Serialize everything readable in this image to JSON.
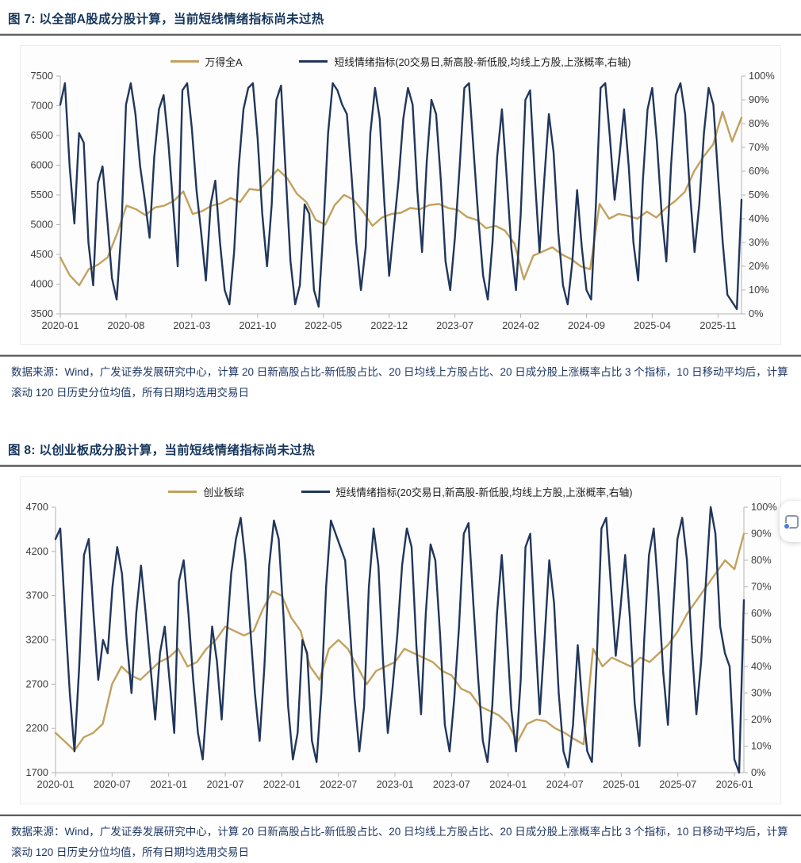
{
  "colors": {
    "gold": "#C2A05E",
    "navy": "#21365B",
    "title": "#16365C",
    "source_text": "#1F3864",
    "axis_line": "#b3b3b3",
    "axis_label": "#3c3c3c"
  },
  "figure1": {
    "title": "图 7:  以全部A股成分股计算，当前短线情绪指标尚未过热",
    "legend_price": "万得全A",
    "legend_sentiment": "短线情绪指标(20交易日,新高股-新低股,均线上方股,上涨概率,右轴)",
    "source": "数据来源：Wind，广发证券发展研究中心，计算 20 日新高股占比-新低股占比、20 日均线上方股占比、20 日成分股上涨概率占比 3 个指标，10 日移动平均后，计算滚动 120 日历史分位均值，所有日期均选用交易日"
  },
  "figure2": {
    "title": "图 8:  以创业板成分股计算，当前短线情绪指标尚未过热",
    "legend_price": "创业板综",
    "legend_sentiment": "短线情绪指标(20交易日,新高股-新低股,均线上方股,上涨概率,右轴)",
    "source": "数据来源：Wind，广发证券发展研究中心，计算 20 日新高股占比-新低股占比、20 日均线上方股占比、20 日成分股上涨概率占比 3 个指标，10 日移动平均后，计算滚动 120 日历史分位均值，所有日期均选用交易日"
  },
  "chart_data": [
    {
      "type": "line",
      "title": "以全部A股成分股计算的短线情绪指标",
      "legend_position": "top",
      "grid": false,
      "x_months": 72.5,
      "x_ticks": [
        {
          "label": "2020-01",
          "m": 0
        },
        {
          "label": "2020-08",
          "m": 7
        },
        {
          "label": "2021-03",
          "m": 14
        },
        {
          "label": "2021-10",
          "m": 21
        },
        {
          "label": "2022-05",
          "m": 28
        },
        {
          "label": "2022-12",
          "m": 35
        },
        {
          "label": "2023-07",
          "m": 42
        },
        {
          "label": "2024-02",
          "m": 49
        },
        {
          "label": "2024-09",
          "m": 56
        },
        {
          "label": "2025-04",
          "m": 63
        },
        {
          "label": "2025-11",
          "m": 70
        }
      ],
      "left_axis": {
        "min": 3500,
        "max": 7500,
        "ticks": [
          3500,
          4000,
          4500,
          5000,
          5500,
          6000,
          6500,
          7000,
          7500
        ]
      },
      "right_axis": {
        "min": 0,
        "max": 100,
        "ticks": [
          0,
          10,
          20,
          30,
          40,
          50,
          60,
          70,
          80,
          90,
          100
        ],
        "suffix": "%"
      },
      "series": [
        {
          "name": "万得全A",
          "axis": "left",
          "color": "gold",
          "points_per_month": 1,
          "values": [
            4450,
            4150,
            3980,
            4250,
            4330,
            4450,
            4850,
            5320,
            5260,
            5160,
            5290,
            5320,
            5400,
            5560,
            5180,
            5230,
            5320,
            5360,
            5450,
            5380,
            5600,
            5580,
            5750,
            5930,
            5780,
            5520,
            5380,
            5080,
            5000,
            5330,
            5500,
            5420,
            5220,
            4980,
            5120,
            5180,
            5200,
            5280,
            5260,
            5330,
            5350,
            5280,
            5250,
            5130,
            5080,
            4940,
            4980,
            4900,
            4680,
            4080,
            4480,
            4550,
            4620,
            4500,
            4420,
            4300,
            4250,
            5350,
            5100,
            5180,
            5150,
            5100,
            5220,
            5120,
            5280,
            5400,
            5550,
            5900,
            6150,
            6350,
            6900,
            6400,
            6800
          ]
        },
        {
          "name": "短线情绪指标(20交易日,新高股-新低股,均线上方股,上涨概率,右轴)",
          "axis": "right",
          "color": "navy",
          "points_per_month": 2,
          "values": [
            88,
            97,
            62,
            38,
            76,
            72,
            30,
            12,
            55,
            62,
            40,
            15,
            6,
            35,
            88,
            97,
            84,
            62,
            48,
            32,
            66,
            86,
            92,
            72,
            46,
            20,
            94,
            97,
            78,
            52,
            34,
            14,
            46,
            56,
            30,
            10,
            4,
            26,
            62,
            86,
            95,
            97,
            74,
            42,
            20,
            46,
            90,
            96,
            58,
            22,
            4,
            12,
            46,
            42,
            10,
            3,
            36,
            76,
            97,
            94,
            88,
            84,
            58,
            30,
            10,
            28,
            76,
            95,
            82,
            46,
            16,
            36,
            56,
            82,
            95,
            88,
            52,
            26,
            64,
            90,
            84,
            56,
            22,
            10,
            32,
            62,
            95,
            97,
            68,
            40,
            16,
            6,
            30,
            66,
            86,
            58,
            28,
            10,
            42,
            90,
            94,
            58,
            26,
            56,
            84,
            68,
            34,
            12,
            4,
            22,
            52,
            28,
            10,
            6,
            46,
            95,
            97,
            74,
            48,
            66,
            86,
            62,
            30,
            14,
            56,
            86,
            95,
            72,
            42,
            22,
            62,
            92,
            97,
            84,
            52,
            26,
            46,
            76,
            95,
            88,
            58,
            30,
            8,
            5,
            2,
            48
          ]
        }
      ]
    },
    {
      "type": "line",
      "title": "以创业板成分股计算的短线情绪指标",
      "legend_position": "top",
      "grid": false,
      "x_months": 73,
      "x_ticks": [
        {
          "label": "2020-01",
          "m": 0
        },
        {
          "label": "2020-07",
          "m": 6
        },
        {
          "label": "2021-01",
          "m": 12
        },
        {
          "label": "2021-07",
          "m": 18
        },
        {
          "label": "2022-01",
          "m": 24
        },
        {
          "label": "2022-07",
          "m": 30
        },
        {
          "label": "2023-01",
          "m": 36
        },
        {
          "label": "2023-07",
          "m": 42
        },
        {
          "label": "2024-01",
          "m": 48
        },
        {
          "label": "2024-07",
          "m": 54
        },
        {
          "label": "2025-01",
          "m": 60
        },
        {
          "label": "2025-07",
          "m": 66
        },
        {
          "label": "2026-01",
          "m": 72
        }
      ],
      "left_axis": {
        "min": 1700,
        "max": 4700,
        "ticks": [
          1700,
          2200,
          2700,
          3200,
          3700,
          4200,
          4700
        ]
      },
      "right_axis": {
        "min": 0,
        "max": 100,
        "ticks": [
          0,
          10,
          20,
          30,
          40,
          50,
          60,
          70,
          80,
          90,
          100
        ],
        "suffix": "%"
      },
      "series": [
        {
          "name": "创业板综",
          "axis": "left",
          "color": "gold",
          "points_per_month": 1,
          "values": [
            2150,
            2050,
            1950,
            2100,
            2150,
            2250,
            2700,
            2900,
            2800,
            2750,
            2850,
            2950,
            3000,
            3100,
            2900,
            2950,
            3100,
            3200,
            3350,
            3300,
            3250,
            3300,
            3550,
            3750,
            3700,
            3450,
            3300,
            2900,
            2750,
            3100,
            3200,
            3100,
            2900,
            2700,
            2850,
            2900,
            2950,
            3100,
            3050,
            3000,
            2950,
            2850,
            2800,
            2650,
            2600,
            2450,
            2400,
            2350,
            2250,
            2050,
            2250,
            2300,
            2280,
            2200,
            2150,
            2080,
            2020,
            3100,
            2900,
            3000,
            2950,
            2900,
            3000,
            2950,
            3050,
            3150,
            3300,
            3500,
            3650,
            3800,
            3950,
            4100,
            4000,
            4400
          ]
        },
        {
          "name": "短线情绪指标(20交易日,新高股-新低股,均线上方股,上涨概率,右轴)",
          "axis": "right",
          "color": "navy",
          "points_per_month": 2,
          "values": [
            88,
            92,
            60,
            30,
            8,
            40,
            82,
            88,
            60,
            35,
            50,
            45,
            70,
            85,
            75,
            50,
            30,
            60,
            78,
            60,
            40,
            20,
            45,
            55,
            35,
            15,
            72,
            80,
            60,
            35,
            15,
            5,
            30,
            55,
            42,
            20,
            50,
            75,
            88,
            96,
            80,
            55,
            30,
            12,
            40,
            78,
            95,
            88,
            60,
            25,
            5,
            15,
            50,
            45,
            12,
            4,
            30,
            70,
            95,
            90,
            85,
            80,
            55,
            28,
            8,
            25,
            70,
            92,
            78,
            42,
            15,
            32,
            52,
            78,
            92,
            85,
            48,
            22,
            60,
            86,
            80,
            52,
            18,
            8,
            28,
            55,
            90,
            94,
            64,
            36,
            12,
            4,
            25,
            60,
            82,
            54,
            24,
            8,
            35,
            85,
            90,
            54,
            22,
            50,
            80,
            64,
            30,
            8,
            2,
            18,
            48,
            25,
            8,
            4,
            42,
            92,
            96,
            70,
            44,
            62,
            82,
            58,
            26,
            10,
            50,
            82,
            92,
            68,
            38,
            18,
            58,
            88,
            96,
            80,
            48,
            22,
            42,
            72,
            100,
            90,
            55,
            45,
            40,
            5,
            0,
            65
          ]
        }
      ]
    }
  ],
  "overlay": {
    "tooltip": "browser side panel handle"
  }
}
